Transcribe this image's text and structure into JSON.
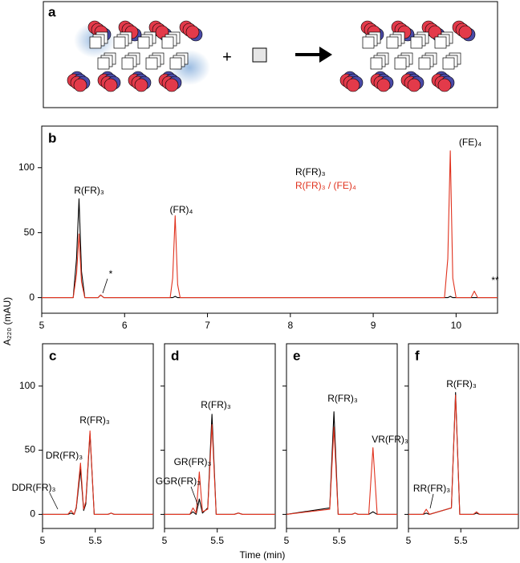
{
  "diagram": {
    "panel": "a",
    "plus": "+"
  },
  "x_label": "Time (min)",
  "y_label": "A₂₂₀ (mAU)",
  "chart_data": [
    {
      "type": "line",
      "panel": "b",
      "x": [
        5,
        5.38,
        5.42,
        5.45,
        5.48,
        5.52,
        5.68,
        5.71,
        5.75,
        6.55,
        6.58,
        6.61,
        6.64,
        6.67,
        9.86,
        9.9,
        9.93,
        9.96,
        10,
        10.18,
        10.22,
        10.26,
        10.5
      ],
      "series": [
        {
          "name": "R(FR)₃",
          "color": "#000000",
          "values": [
            0,
            0,
            30,
            76,
            20,
            0,
            0,
            2,
            0,
            0,
            0,
            1,
            0,
            0,
            0,
            0,
            1,
            0,
            0,
            0,
            0,
            0,
            0
          ]
        },
        {
          "name": "R(FR)₃ / (FE)₄",
          "color": "#e0321e",
          "values": [
            0,
            0,
            18,
            49,
            12,
            0,
            0,
            2,
            0,
            0,
            15,
            63,
            10,
            0,
            0,
            30,
            113,
            15,
            0,
            0,
            5,
            0,
            0
          ]
        }
      ],
      "xlim": [
        5,
        10.5
      ],
      "ylim": [
        -12,
        132
      ],
      "xticks": [
        5,
        6,
        7,
        8,
        9,
        10
      ],
      "yticks": [
        0,
        50,
        100
      ],
      "legend": "top-center",
      "annotations": [
        "R(FR)₃",
        "*",
        "(FR)₄",
        "(FE)₄",
        "**"
      ]
    },
    {
      "type": "line",
      "panel": "c",
      "x": [
        5,
        5.24,
        5.27,
        5.3,
        5.32,
        5.36,
        5.39,
        5.41,
        5.45,
        5.49,
        5.62,
        5.65,
        5.68,
        6.05
      ],
      "series": [
        {
          "color": "#000000",
          "values": [
            0,
            0,
            1,
            0,
            5,
            35,
            3,
            8,
            63,
            0,
            0,
            1,
            0,
            0
          ]
        },
        {
          "color": "#e0321e",
          "values": [
            0,
            0,
            3,
            0,
            6,
            40,
            4,
            10,
            65,
            0,
            0,
            1,
            0,
            0
          ]
        }
      ],
      "xlim": [
        5,
        6.05
      ],
      "ylim": [
        -11,
        133
      ],
      "xticks": [
        5,
        5.5
      ],
      "yticks": [
        0,
        50,
        100
      ],
      "annotations": [
        "R(FR)₃",
        "DR(FR)₃",
        "DDR(FR)₃"
      ]
    },
    {
      "type": "line",
      "panel": "d",
      "x": [
        5,
        5.24,
        5.27,
        5.3,
        5.33,
        5.36,
        5.41,
        5.45,
        5.49,
        5.66,
        5.7,
        5.74,
        6.05
      ],
      "series": [
        {
          "color": "#000000",
          "values": [
            0,
            0,
            2,
            0,
            12,
            1,
            5,
            78,
            0,
            0,
            1,
            0,
            0
          ]
        },
        {
          "color": "#e0321e",
          "values": [
            0,
            0,
            5,
            1,
            33,
            2,
            4,
            70,
            0,
            0,
            1,
            0,
            0
          ]
        }
      ],
      "xlim": [
        5,
        6.05
      ],
      "ylim": [
        -11,
        133
      ],
      "xticks": [
        5,
        5.5
      ],
      "yticks": [
        0,
        50,
        100
      ],
      "ytick_labels": false,
      "annotations": [
        "R(FR)₃",
        "GR(FR)₃",
        "GGR(FR)₃"
      ]
    },
    {
      "type": "line",
      "panel": "e",
      "x": [
        5,
        5.41,
        5.45,
        5.49,
        5.62,
        5.65,
        5.68,
        5.78,
        5.82,
        5.86,
        6.05
      ],
      "series": [
        {
          "color": "#000000",
          "values": [
            0,
            5,
            80,
            0,
            0,
            1,
            0,
            0,
            2,
            0,
            0
          ]
        },
        {
          "color": "#e0321e",
          "values": [
            0,
            4,
            68,
            0,
            0,
            1,
            0,
            0,
            52,
            0,
            0
          ]
        }
      ],
      "xlim": [
        5,
        6.05
      ],
      "ylim": [
        -11,
        133
      ],
      "xticks": [
        5,
        5.5
      ],
      "yticks": [
        0,
        50,
        100
      ],
      "ytick_labels": false,
      "annotations": [
        "R(FR)₃",
        "VR(FR)₃"
      ]
    },
    {
      "type": "line",
      "panel": "f",
      "x": [
        5,
        5.14,
        5.17,
        5.2,
        5.41,
        5.45,
        5.49,
        5.62,
        5.65,
        5.68,
        6.05
      ],
      "series": [
        {
          "color": "#000000",
          "values": [
            0,
            0,
            1,
            0,
            5,
            95,
            0,
            0,
            1,
            0,
            0
          ]
        },
        {
          "color": "#e0321e",
          "values": [
            0,
            0,
            4,
            0,
            5,
            93,
            0,
            0,
            2,
            0,
            0
          ]
        }
      ],
      "xlim": [
        5,
        6.05
      ],
      "ylim": [
        -11,
        133
      ],
      "xticks": [
        5,
        5.5
      ],
      "yticks": [
        0,
        50,
        100
      ],
      "ytick_labels": false,
      "annotations": [
        "R(FR)₃",
        "RR(FR)₃"
      ]
    }
  ]
}
